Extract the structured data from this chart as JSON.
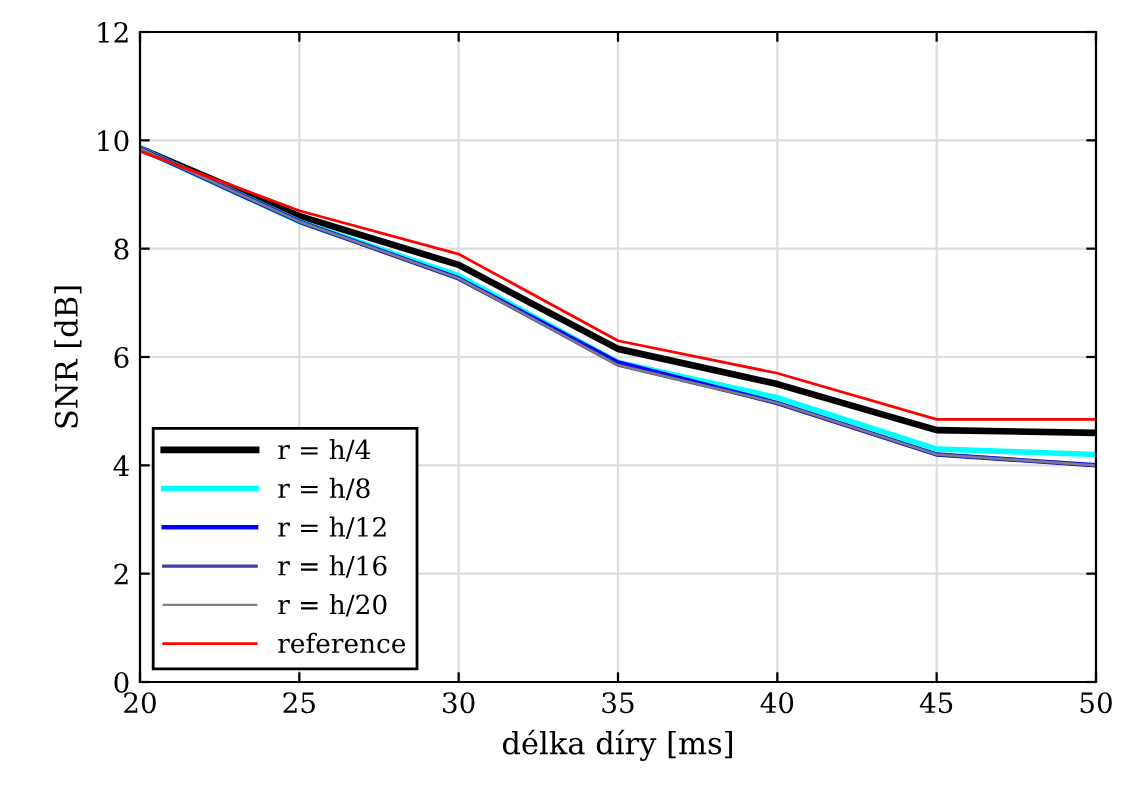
{
  "chart_data": {
    "type": "line",
    "xlabel": "délka díry [ms]",
    "ylabel": "SNR [dB]",
    "x": [
      20,
      25,
      30,
      35,
      40,
      45,
      50
    ],
    "series": [
      {
        "name": "r = h/4",
        "color": "#000000",
        "values": [
          9.85,
          8.6,
          7.7,
          6.15,
          5.5,
          4.65,
          4.6
        ]
      },
      {
        "name": "r = h/8",
        "color": "#00ffff",
        "values": [
          9.85,
          8.5,
          7.5,
          5.9,
          5.25,
          4.3,
          4.2
        ]
      },
      {
        "name": "r = h/12",
        "color": "#0000ff",
        "values": [
          9.85,
          8.5,
          7.45,
          5.9,
          5.15,
          4.2,
          4.0
        ]
      },
      {
        "name": "r = h/16",
        "color": "#4040a0",
        "values": [
          9.85,
          8.5,
          7.45,
          5.85,
          5.15,
          4.2,
          4.0
        ]
      },
      {
        "name": "r = h/20",
        "color": "#808080",
        "values": [
          9.85,
          8.5,
          7.45,
          5.85,
          5.15,
          4.2,
          4.0
        ]
      },
      {
        "name": "reference",
        "color": "#ff0000",
        "values": [
          9.8,
          8.7,
          7.9,
          6.3,
          5.7,
          4.85,
          4.85
        ]
      }
    ],
    "xlim": [
      20,
      50
    ],
    "xticks": [
      20,
      25,
      30,
      35,
      40,
      45,
      50
    ],
    "ylim": [
      0,
      12
    ],
    "yticks": [
      0,
      2,
      4,
      6,
      8,
      10,
      12
    ],
    "grid": true,
    "legend": "bottom left",
    "line_style": "solid",
    "marker": "none"
  }
}
